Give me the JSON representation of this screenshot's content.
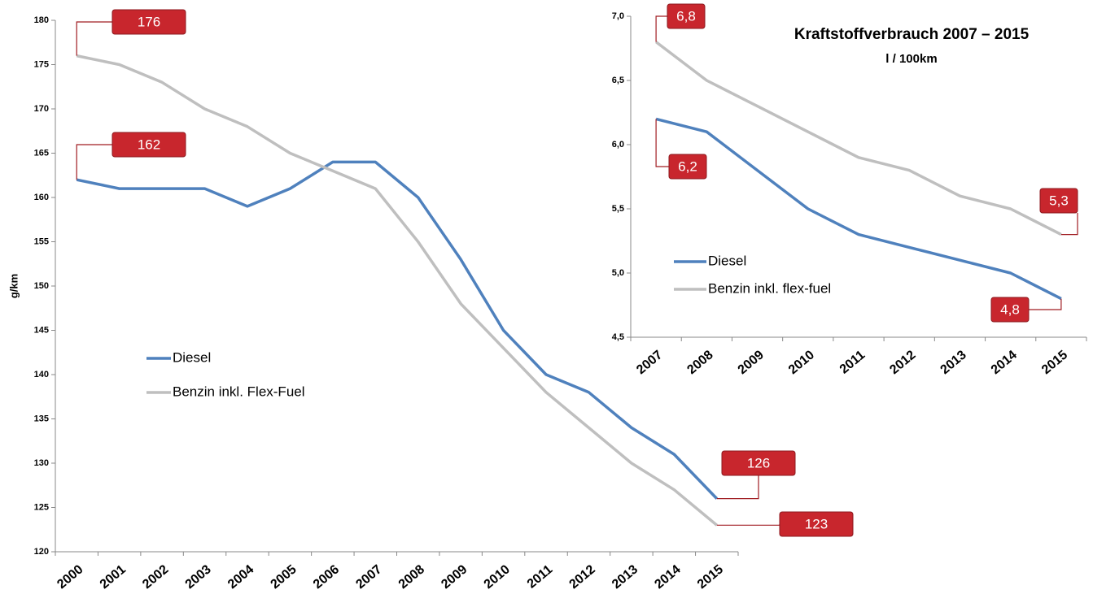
{
  "chart_data": [
    {
      "type": "line",
      "ylabel": "g/km",
      "categories": [
        "2000",
        "2001",
        "2002",
        "2003",
        "2004",
        "2005",
        "2006",
        "2007",
        "2008",
        "2009",
        "2010",
        "2011",
        "2012",
        "2013",
        "2014",
        "2015"
      ],
      "series": [
        {
          "name": "Diesel",
          "color": "#4f81bd",
          "values": [
            162,
            161,
            161,
            161,
            159,
            161,
            164,
            164,
            160,
            153,
            145,
            140,
            138,
            134,
            131,
            126
          ]
        },
        {
          "name": "Benzin inkl. Flex-Fuel",
          "color": "#bfbfbf",
          "values": [
            176,
            175,
            173,
            170,
            168,
            165,
            163,
            161,
            155,
            148,
            143,
            138,
            134,
            130,
            127,
            123
          ]
        }
      ],
      "ylim": [
        120,
        180
      ],
      "yticks": [
        120,
        125,
        130,
        135,
        140,
        145,
        150,
        155,
        160,
        165,
        170,
        175,
        180
      ]
    },
    {
      "type": "line",
      "title": "Kraftstoffverbrauch 2007 – 2015",
      "subtitle": "l / 100km",
      "categories": [
        "2007",
        "2008",
        "2009",
        "2010",
        "2011",
        "2012",
        "2013",
        "2014",
        "2015"
      ],
      "series": [
        {
          "name": "Diesel",
          "color": "#4f81bd",
          "values": [
            6.2,
            6.1,
            5.8,
            5.5,
            5.3,
            5.2,
            5.1,
            5.0,
            4.8
          ],
          "value_labels": [
            "6,2",
            null,
            null,
            null,
            null,
            null,
            null,
            null,
            "4,8"
          ]
        },
        {
          "name": "Benzin inkl. flex-fuel",
          "color": "#bfbfbf",
          "values": [
            6.8,
            6.5,
            6.3,
            6.1,
            5.9,
            5.8,
            5.6,
            5.5,
            5.3
          ],
          "value_labels": [
            "6,8",
            null,
            null,
            null,
            null,
            null,
            null,
            null,
            "5,3"
          ]
        }
      ],
      "ylim": [
        4.5,
        7.0
      ],
      "yticks": [
        {
          "value": 4.5,
          "label": "4,5"
        },
        {
          "value": 5.0,
          "label": "5,0"
        },
        {
          "value": 5.5,
          "label": "5,5"
        },
        {
          "value": 6.0,
          "label": "6,0"
        },
        {
          "value": 6.5,
          "label": "6,5"
        },
        {
          "value": 7.0,
          "label": "7,0"
        }
      ]
    }
  ]
}
